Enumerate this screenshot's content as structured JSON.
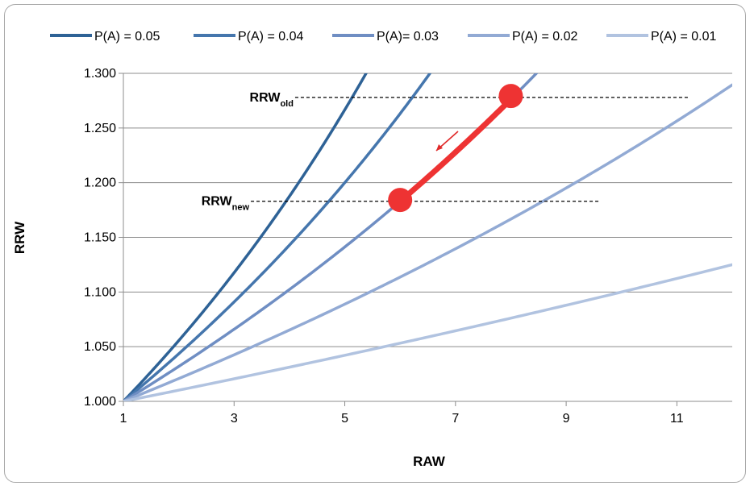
{
  "chart_data": {
    "type": "line",
    "title": "",
    "xlabel": "RAW",
    "ylabel": "RRW",
    "xlim": [
      1,
      12
    ],
    "ylim": [
      1.0,
      1.3
    ],
    "x_ticks": [
      "1",
      "3",
      "5",
      "7",
      "9",
      "11"
    ],
    "y_ticks": [
      "1.000",
      "1.050",
      "1.100",
      "1.150",
      "1.200",
      "1.250",
      "1.300"
    ],
    "grid": "horizontal",
    "legend_position": "top",
    "series": [
      {
        "name": "P(A) = 0.05",
        "p": 0.05,
        "color": "#2e6296",
        "x": [
          1,
          2,
          3,
          4,
          5,
          5.4
        ],
        "y": [
          1.0,
          1.0556,
          1.1176,
          1.1875,
          1.2667,
          1.3004
        ]
      },
      {
        "name": "P(A) = 0.04",
        "p": 0.04,
        "color": "#4576ad",
        "x": [
          1,
          2,
          3,
          4,
          5,
          6,
          6.6
        ],
        "y": [
          1.0,
          1.0435,
          1.0909,
          1.1429,
          1.2,
          1.2632,
          1.3043
        ]
      },
      {
        "name": "P(A)= 0.03",
        "p": 0.03,
        "color": "#6f8ec3",
        "x": [
          1,
          2,
          3,
          4,
          5,
          6,
          7,
          8,
          8.7
        ],
        "y": [
          1.0,
          1.0319,
          1.066,
          1.1026,
          1.1419,
          1.1842,
          1.2299,
          1.2793,
          1.3166
        ]
      },
      {
        "name": "P(A) = 0.02",
        "p": 0.02,
        "color": "#92aad4",
        "x": [
          1,
          2,
          4,
          6,
          8,
          10,
          12
        ],
        "y": [
          1.0,
          1.0208,
          1.0652,
          1.1136,
          1.1667,
          1.225,
          1.2895
        ]
      },
      {
        "name": "P(A) = 0.01",
        "p": 0.01,
        "color": "#b1c3e0",
        "x": [
          1,
          2,
          4,
          6,
          8,
          10,
          12
        ],
        "y": [
          1.0,
          1.0102,
          1.0309,
          1.0526,
          1.0753,
          1.0989,
          1.1236
        ]
      }
    ],
    "annotations": {
      "rrw_old": {
        "label": "RRW",
        "subscript": "old",
        "y": 1.278,
        "x_start": 1.3,
        "x_end": 11.2
      },
      "rrw_new": {
        "label": "RRW",
        "subscript": "new",
        "y": 1.183,
        "x_start": 1.3,
        "x_end": 9.6
      },
      "move_segment": {
        "color": "#ee3333",
        "from": {
          "x": 8.0,
          "y": 1.2793
        },
        "to": {
          "x": 6.0,
          "y": 1.1842
        }
      },
      "arrow_color": "#e02a2a"
    }
  }
}
